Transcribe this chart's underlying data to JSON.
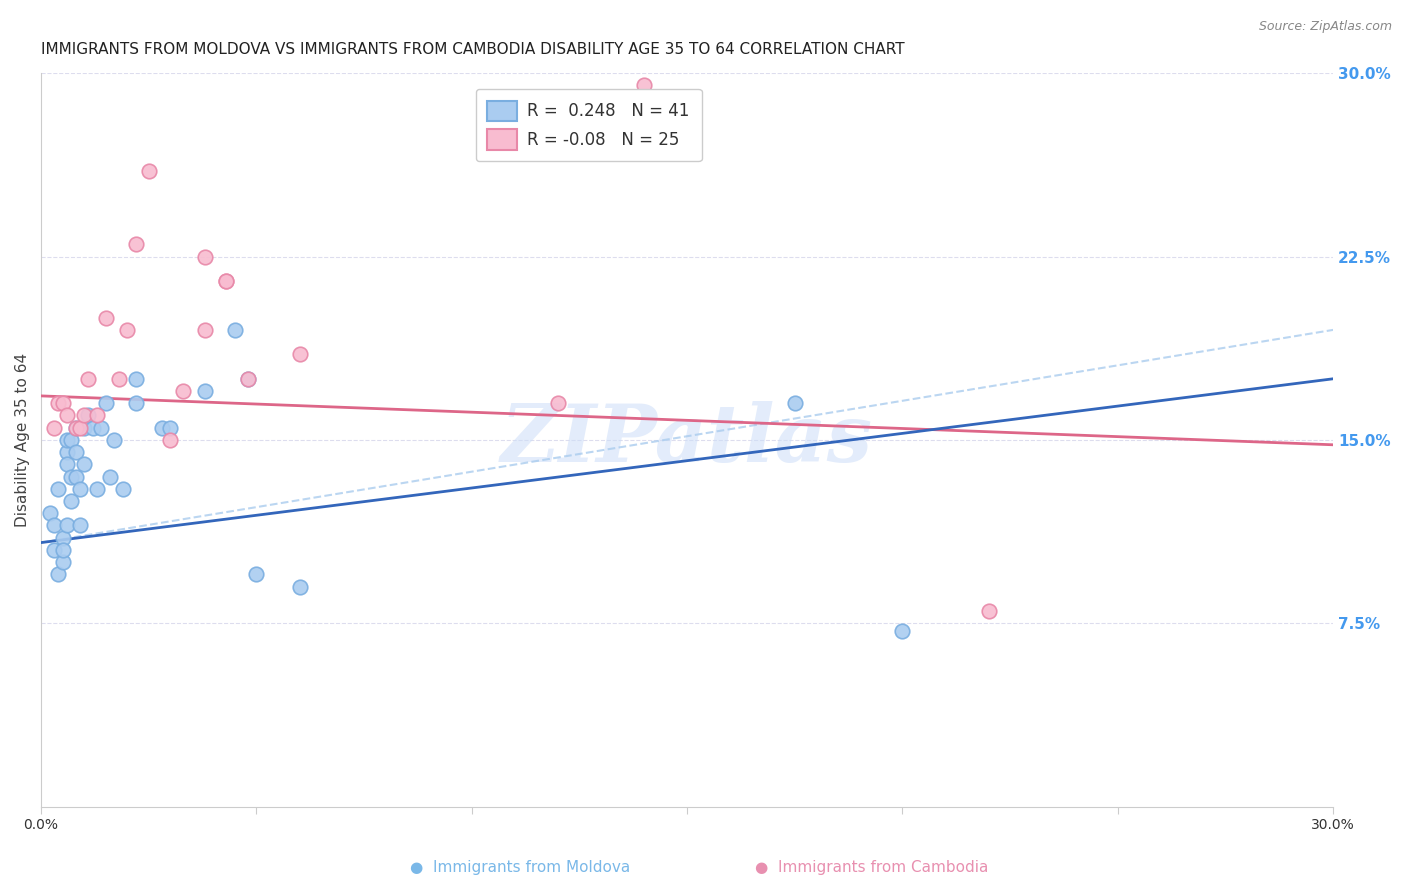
{
  "title": "IMMIGRANTS FROM MOLDOVA VS IMMIGRANTS FROM CAMBODIA DISABILITY AGE 35 TO 64 CORRELATION CHART",
  "source": "Source: ZipAtlas.com",
  "ylabel": "Disability Age 35 to 64",
  "ylabel_right_ticks": [
    "7.5%",
    "15.0%",
    "22.5%",
    "30.0%"
  ],
  "ylabel_right_vals": [
    0.075,
    0.15,
    0.225,
    0.3
  ],
  "xmin": 0.0,
  "xmax": 0.3,
  "ymin": 0.0,
  "ymax": 0.3,
  "moldova_color_fill": "#aaccf0",
  "moldova_color_edge": "#7aaee0",
  "cambodia_color_fill": "#f8bcd0",
  "cambodia_color_edge": "#e888a8",
  "moldova_R": 0.248,
  "moldova_N": 41,
  "cambodia_R": -0.08,
  "cambodia_N": 25,
  "moldova_line_color": "#3366bb",
  "cambodia_line_color": "#dd6688",
  "moldova_trend_x": [
    0.0,
    0.3
  ],
  "moldova_trend_y": [
    0.108,
    0.175
  ],
  "cambodia_trend_x": [
    0.0,
    0.3
  ],
  "cambodia_trend_y": [
    0.168,
    0.148
  ],
  "grid_color": "#ddddee",
  "watermark_text": "ZIPatlas",
  "moldova_points_x": [
    0.002,
    0.003,
    0.003,
    0.004,
    0.004,
    0.005,
    0.005,
    0.005,
    0.006,
    0.006,
    0.006,
    0.006,
    0.007,
    0.007,
    0.007,
    0.008,
    0.008,
    0.008,
    0.009,
    0.009,
    0.01,
    0.01,
    0.011,
    0.012,
    0.013,
    0.014,
    0.015,
    0.016,
    0.017,
    0.019,
    0.022,
    0.022,
    0.028,
    0.03,
    0.038,
    0.045,
    0.048,
    0.05,
    0.06,
    0.175,
    0.2
  ],
  "moldova_points_y": [
    0.12,
    0.105,
    0.115,
    0.095,
    0.13,
    0.1,
    0.11,
    0.105,
    0.145,
    0.15,
    0.14,
    0.115,
    0.135,
    0.125,
    0.15,
    0.135,
    0.145,
    0.155,
    0.115,
    0.13,
    0.155,
    0.14,
    0.16,
    0.155,
    0.13,
    0.155,
    0.165,
    0.135,
    0.15,
    0.13,
    0.175,
    0.165,
    0.155,
    0.155,
    0.17,
    0.195,
    0.175,
    0.095,
    0.09,
    0.165,
    0.072
  ],
  "cambodia_points_x": [
    0.003,
    0.004,
    0.005,
    0.006,
    0.008,
    0.009,
    0.01,
    0.011,
    0.013,
    0.015,
    0.018,
    0.02,
    0.022,
    0.025,
    0.03,
    0.033,
    0.038,
    0.043,
    0.048,
    0.06,
    0.038,
    0.043,
    0.12,
    0.14,
    0.22
  ],
  "cambodia_points_y": [
    0.155,
    0.165,
    0.165,
    0.16,
    0.155,
    0.155,
    0.16,
    0.175,
    0.16,
    0.2,
    0.175,
    0.195,
    0.23,
    0.26,
    0.15,
    0.17,
    0.225,
    0.215,
    0.175,
    0.185,
    0.195,
    0.215,
    0.165,
    0.295,
    0.08
  ]
}
